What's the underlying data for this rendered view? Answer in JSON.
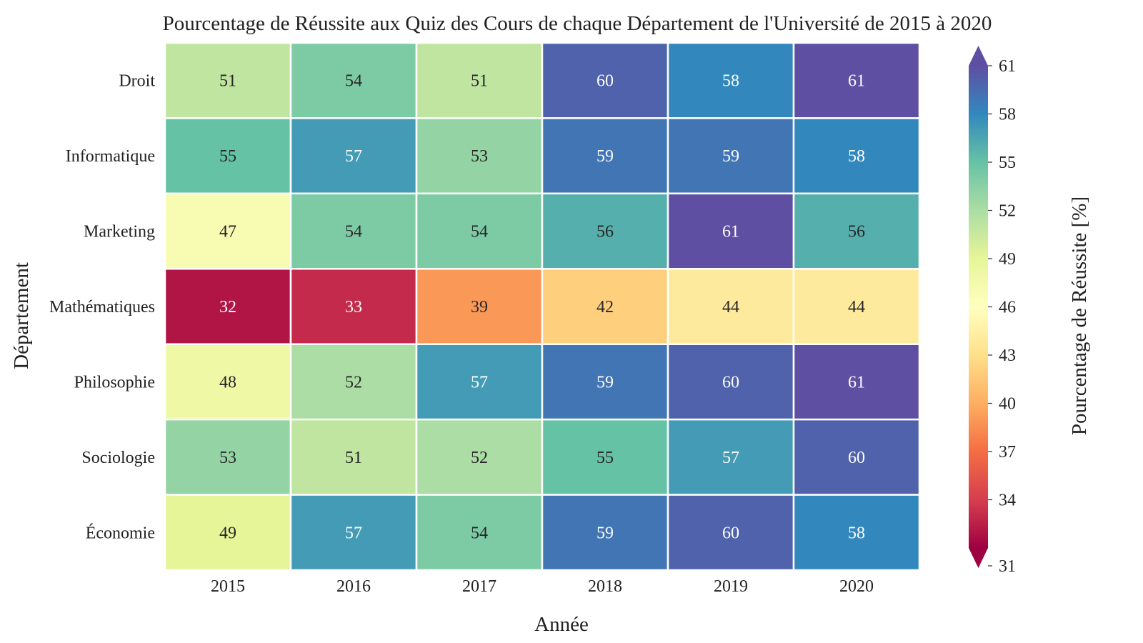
{
  "chart_data": {
    "type": "heatmap",
    "title": "Pourcentage de Réussite aux Quiz des Cours de chaque Département de l'Université de 2015 à 2020",
    "xlabel": "Année",
    "ylabel": "Département",
    "x": [
      "2015",
      "2016",
      "2017",
      "2018",
      "2019",
      "2020"
    ],
    "y": [
      "Droit",
      "Informatique",
      "Marketing",
      "Mathématiques",
      "Philosophie",
      "Sociologie",
      "Économie"
    ],
    "values": [
      [
        51,
        54,
        51,
        60,
        58,
        61
      ],
      [
        55,
        57,
        53,
        59,
        59,
        58
      ],
      [
        47,
        54,
        54,
        56,
        61,
        56
      ],
      [
        32,
        33,
        39,
        42,
        44,
        44
      ],
      [
        48,
        52,
        57,
        59,
        60,
        61
      ],
      [
        53,
        51,
        52,
        55,
        57,
        60
      ],
      [
        49,
        57,
        54,
        59,
        60,
        58
      ]
    ],
    "colorbar": {
      "label": "Pourcentage de Réussite [%]",
      "ticks": [
        31,
        34,
        37,
        40,
        43,
        46,
        49,
        52,
        55,
        58,
        61
      ],
      "range": [
        31,
        61
      ],
      "extend": "both",
      "colormap": "Spectral",
      "colors": [
        "#9e0142",
        "#d53e4f",
        "#f46d43",
        "#fdae61",
        "#fee08b",
        "#ffffbf",
        "#e6f598",
        "#abdda4",
        "#66c2a5",
        "#3288bd",
        "#5e4fa2"
      ]
    }
  }
}
